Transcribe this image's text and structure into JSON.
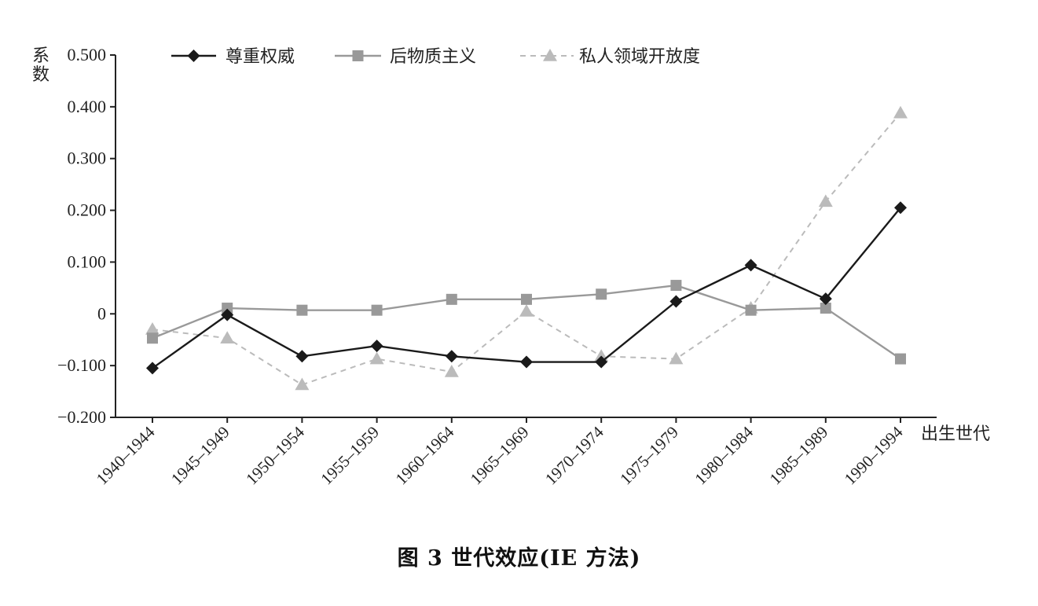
{
  "caption": "图 3 世代效应(IE 方法)",
  "chart_data": {
    "type": "line",
    "title": "",
    "ylabel": "系数",
    "xlabel": "出生世代",
    "ylim": [
      -0.2,
      0.5
    ],
    "yticks": [
      {
        "value": -0.2,
        "label": "−0.200"
      },
      {
        "value": -0.1,
        "label": "−0.100"
      },
      {
        "value": 0,
        "label": "0"
      },
      {
        "value": 0.1,
        "label": "0.100"
      },
      {
        "value": 0.2,
        "label": "0.200"
      },
      {
        "value": 0.3,
        "label": "0.300"
      },
      {
        "value": 0.4,
        "label": "0.400"
      },
      {
        "value": 0.5,
        "label": "0.500"
      }
    ],
    "categories": [
      "1940–1944",
      "1945–1949",
      "1950–1954",
      "1955–1959",
      "1960–1964",
      "1965–1969",
      "1970–1974",
      "1975–1979",
      "1980–1984",
      "1985–1989",
      "1990–1994"
    ],
    "grid": false,
    "legend_position": "top",
    "series": [
      {
        "name": "尊重权威",
        "marker": "diamond",
        "color": "#1a1a1a",
        "dashed": false,
        "values": [
          -0.105,
          -0.002,
          -0.082,
          -0.062,
          -0.082,
          -0.093,
          -0.093,
          0.024,
          0.094,
          0.029,
          0.205
        ]
      },
      {
        "name": "后物质主义",
        "marker": "square",
        "color": "#999999",
        "dashed": false,
        "values": [
          -0.047,
          0.011,
          0.007,
          0.007,
          0.028,
          0.028,
          0.038,
          0.055,
          0.007,
          0.011,
          -0.087
        ]
      },
      {
        "name": "私人领域开放度",
        "marker": "triangle",
        "color": "#bbbbbb",
        "dashed": true,
        "values": [
          -0.03,
          -0.047,
          -0.137,
          -0.087,
          -0.112,
          0.005,
          -0.082,
          -0.087,
          0.011,
          0.217,
          0.388
        ]
      }
    ]
  }
}
